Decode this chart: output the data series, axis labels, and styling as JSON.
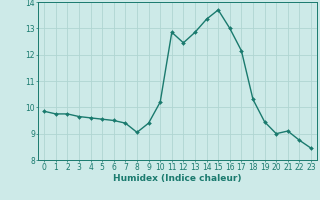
{
  "x": [
    0,
    1,
    2,
    3,
    4,
    5,
    6,
    7,
    8,
    9,
    10,
    11,
    12,
    13,
    14,
    15,
    16,
    17,
    18,
    19,
    20,
    21,
    22,
    23
  ],
  "y": [
    9.85,
    9.75,
    9.75,
    9.65,
    9.6,
    9.55,
    9.5,
    9.4,
    9.05,
    9.4,
    10.2,
    12.85,
    12.45,
    12.85,
    13.35,
    13.7,
    13.0,
    12.15,
    10.3,
    9.45,
    9.0,
    9.1,
    8.75,
    8.45
  ],
  "line_color": "#1a7a6e",
  "marker": "D",
  "marker_size": 2.0,
  "line_width": 1.0,
  "bg_color": "#cdeae8",
  "grid_color": "#b0d5d2",
  "xlabel": "Humidex (Indice chaleur)",
  "xlim": [
    -0.5,
    23.5
  ],
  "ylim": [
    8,
    14
  ],
  "yticks": [
    8,
    9,
    10,
    11,
    12,
    13,
    14
  ],
  "xticks": [
    0,
    1,
    2,
    3,
    4,
    5,
    6,
    7,
    8,
    9,
    10,
    11,
    12,
    13,
    14,
    15,
    16,
    17,
    18,
    19,
    20,
    21,
    22,
    23
  ],
  "xlabel_fontsize": 6.5,
  "tick_fontsize": 5.5
}
